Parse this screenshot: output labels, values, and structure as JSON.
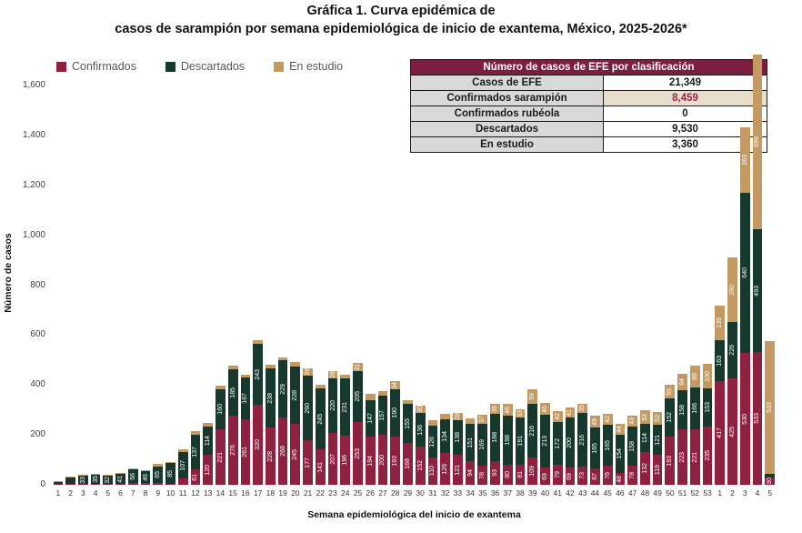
{
  "title": {
    "line1": "Gráfica 1. Curva epidémica de",
    "line2": "casos de sarampión por semana epidemiológica de inicio de exantema, México, 2025-2026*"
  },
  "legend": [
    {
      "label": "Confirmados",
      "color": "#8e2140"
    },
    {
      "label": "Descartados",
      "color": "#17382d"
    },
    {
      "label": "En estudio",
      "color": "#c49a63"
    }
  ],
  "summary_table": {
    "header": "Número de casos de EFE por clasificación",
    "header_bg": "#7d1d3f",
    "rows": [
      {
        "label": "Casos de EFE",
        "value": "21,349",
        "highlight": false
      },
      {
        "label": "Confirmados sarampión",
        "value": "8,459",
        "highlight": true
      },
      {
        "label": "Confirmados rubéola",
        "value": "0",
        "highlight": false
      },
      {
        "label": "Descartados",
        "value": "9,530",
        "highlight": false
      },
      {
        "label": "En estudio",
        "value": "3,360",
        "highlight": false
      }
    ],
    "highlight_bg": "#e7decb",
    "highlight_text": "#9d2449"
  },
  "chart_data": {
    "type": "bar",
    "stacked": true,
    "title": "Gráfica 1. Curva epidémica de casos de sarampión por semana epidemiológica de inicio de exantema, México, 2025-2026*",
    "xlabel": "Semana epidemiológica del inicio de exantema",
    "ylabel": "Número de casos",
    "ylim": [
      0,
      1600
    ],
    "ytick_values": [
      0,
      200,
      400,
      600,
      800,
      1000,
      1200,
      1400,
      1600
    ],
    "ytick_labels": [
      "0",
      "200",
      "400",
      "600",
      "800",
      "1,000",
      "1,200",
      "1,400",
      "1,600"
    ],
    "grid": false,
    "legend_position": "top-left",
    "categories": [
      "1",
      "2",
      "3",
      "4",
      "5",
      "6",
      "7",
      "8",
      "9",
      "10",
      "11",
      "12",
      "13",
      "14",
      "15",
      "16",
      "17",
      "18",
      "19",
      "20",
      "21",
      "22",
      "23",
      "24",
      "25",
      "26",
      "27",
      "28",
      "29",
      "30",
      "31",
      "32",
      "33",
      "34",
      "35",
      "36",
      "37",
      "38",
      "39",
      "40",
      "41",
      "42",
      "43",
      "44",
      "45",
      "46",
      "47",
      "48",
      "49",
      "50",
      "51",
      "52",
      "53",
      "1",
      "2",
      "3",
      "4",
      "5"
    ],
    "series": [
      {
        "name": "Confirmados",
        "color": "#8e2140",
        "values": [
          1,
          3,
          4,
          3,
          4,
          5,
          7,
          6,
          8,
          3,
          26,
          61,
          120,
          221,
          276,
          261,
          320,
          228,
          268,
          245,
          177,
          141,
          207,
          196,
          253,
          194,
          200,
          193,
          168,
          152,
          110,
          129,
          121,
          94,
          78,
          93,
          80,
          81,
          109,
          69,
          79,
          69,
          73,
          67,
          76,
          48,
          78,
          132,
          119,
          193,
          223,
          221,
          235,
          417,
          425,
          530,
          533,
          30
        ]
      },
      {
        "name": "Descartados",
        "color": "#17382d",
        "values": [
          9,
          24,
          33,
          35,
          32,
          41,
          56,
          46,
          65,
          85,
          107,
          137,
          114,
          160,
          185,
          167,
          243,
          238,
          229,
          228,
          260,
          245,
          220,
          231,
          205,
          147,
          157,
          190,
          155,
          136,
          126,
          134,
          138,
          151,
          169,
          188,
          198,
          191,
          216,
          213,
          172,
          200,
          216,
          165,
          165,
          154,
          158,
          114,
          121,
          152,
          158,
          166,
          153,
          163,
          226,
          640,
          493,
          15
        ]
      },
      {
        "name": "En estudio",
        "color": "#c49a63",
        "values": [
          1,
          1,
          2,
          2,
          2,
          2,
          4,
          3,
          10,
          5,
          12,
          15,
          15,
          13,
          15,
          12,
          15,
          13,
          12,
          18,
          28,
          16,
          28,
          13,
          31,
          24,
          20,
          34,
          16,
          30,
          22,
          22,
          28,
          21,
          37,
          39,
          46,
          33,
          59,
          46,
          42,
          41,
          35,
          49,
          42,
          44,
          43,
          53,
          52,
          55,
          64,
          88,
          100,
          139,
          260,
          263,
          699,
          533
        ]
      }
    ]
  }
}
